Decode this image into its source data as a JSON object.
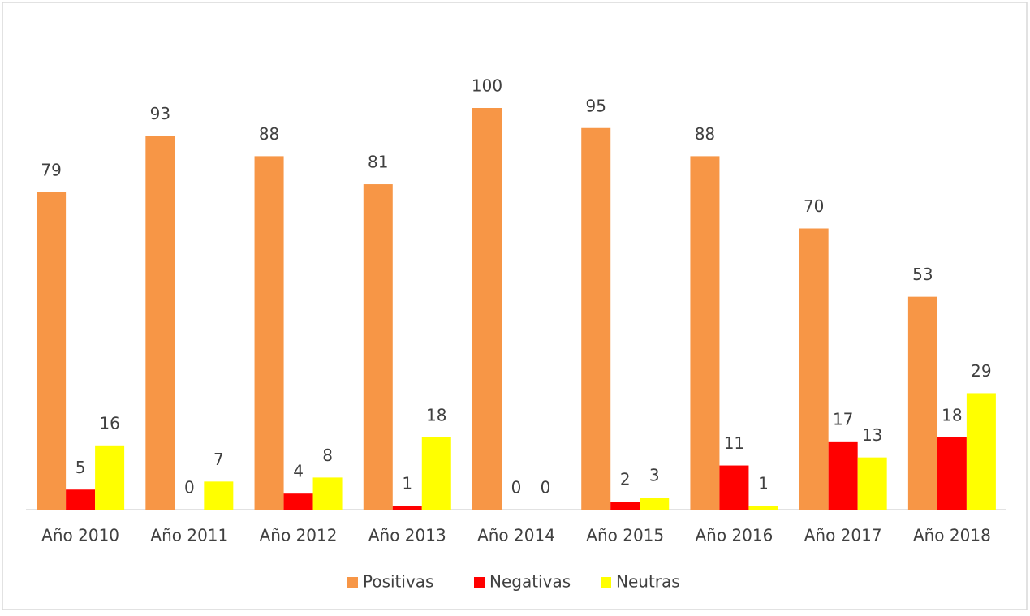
{
  "chart_data": {
    "type": "bar",
    "categories": [
      "Año 2010",
      "Año 2011",
      "Año 2012",
      "Año 2013",
      "Año 2014",
      "Año 2015",
      "Año 2016",
      "Año 2017",
      "Año 2018"
    ],
    "series": [
      {
        "name": "Positivas",
        "color": "#f79646",
        "values": [
          79,
          93,
          88,
          81,
          100,
          95,
          88,
          70,
          53
        ]
      },
      {
        "name": "Negativas",
        "color": "#ff0000",
        "values": [
          5,
          0,
          4,
          1,
          0,
          2,
          11,
          17,
          18
        ]
      },
      {
        "name": "Neutras",
        "color": "#ffff00",
        "values": [
          16,
          7,
          8,
          18,
          0,
          3,
          1,
          13,
          29
        ]
      }
    ],
    "ylim": [
      0,
      100
    ],
    "legend": "bottom"
  }
}
